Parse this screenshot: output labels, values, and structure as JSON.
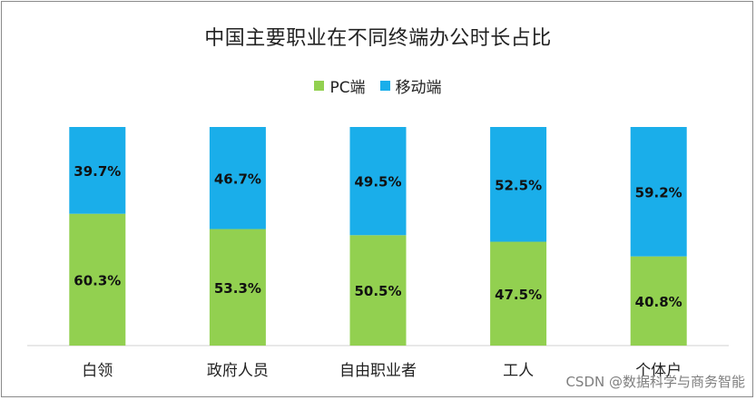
{
  "chart_data": {
    "type": "bar",
    "stacked": true,
    "title": "中国主要职业在不同终端办公时长占比",
    "categories": [
      "白领",
      "政府人员",
      "自由职业者",
      "工人",
      "个体户"
    ],
    "series": [
      {
        "name": "PC端",
        "values": [
          60.3,
          53.3,
          50.5,
          47.5,
          40.8
        ],
        "labels": [
          "60.3%",
          "53.3%",
          "50.5%",
          "47.5%",
          "40.8%"
        ],
        "color": "#92d050"
      },
      {
        "name": "移动端",
        "values": [
          39.7,
          46.7,
          49.5,
          52.5,
          59.2
        ],
        "labels": [
          "39.7%",
          "46.7%",
          "49.5%",
          "52.5%",
          "59.2%"
        ],
        "color": "#1aaeea"
      }
    ],
    "ylim": [
      0,
      100
    ],
    "xlabel": "",
    "ylabel": "",
    "grid": false,
    "legend_position": "top-center"
  },
  "watermark": "CSDN @数据科学与商务智能"
}
